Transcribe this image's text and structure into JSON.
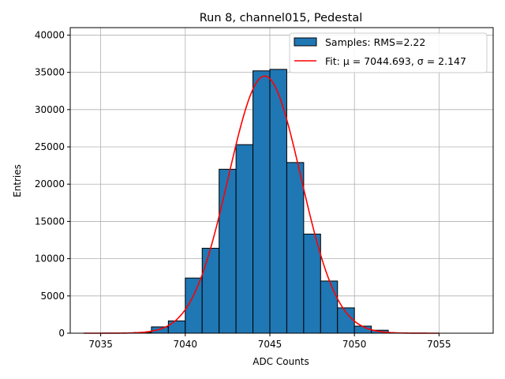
{
  "chart_data": {
    "type": "bar",
    "title": "Run 8, channel015, Pedestal",
    "xlabel": "ADC Counts",
    "ylabel": "Entries",
    "xlim": [
      7033.2,
      7058.2
    ],
    "ylim": [
      0,
      41000
    ],
    "xticks": [
      7035,
      7040,
      7045,
      7050,
      7055
    ],
    "yticks": [
      0,
      5000,
      10000,
      15000,
      20000,
      25000,
      30000,
      35000,
      40000
    ],
    "grid": true,
    "legend_position": "top-right",
    "bin_width": 1,
    "bins": [
      {
        "x0": 7037,
        "value": 100
      },
      {
        "x0": 7038,
        "value": 850
      },
      {
        "x0": 7039,
        "value": 1650
      },
      {
        "x0": 7040,
        "value": 7400
      },
      {
        "x0": 7041,
        "value": 11400
      },
      {
        "x0": 7042,
        "value": 22000
      },
      {
        "x0": 7043,
        "value": 25300
      },
      {
        "x0": 7044,
        "value": 35200
      },
      {
        "x0": 7045,
        "value": 35400
      },
      {
        "x0": 7046,
        "value": 22900
      },
      {
        "x0": 7047,
        "value": 13300
      },
      {
        "x0": 7048,
        "value": 7000
      },
      {
        "x0": 7049,
        "value": 3400
      },
      {
        "x0": 7050,
        "value": 950
      },
      {
        "x0": 7051,
        "value": 400
      },
      {
        "x0": 7052,
        "value": 50
      }
    ],
    "fit": {
      "mu": 7044.693,
      "sigma": 2.147,
      "amplitude": 34500,
      "x_range": [
        7034,
        7055
      ]
    },
    "series": [
      {
        "name": "Samples: RMS=2.22",
        "kind": "histogram",
        "color": "#1f77b4"
      },
      {
        "name": "Fit: μ = 7044.693, σ = 2.147",
        "kind": "line",
        "color": "#ff0000"
      }
    ]
  }
}
